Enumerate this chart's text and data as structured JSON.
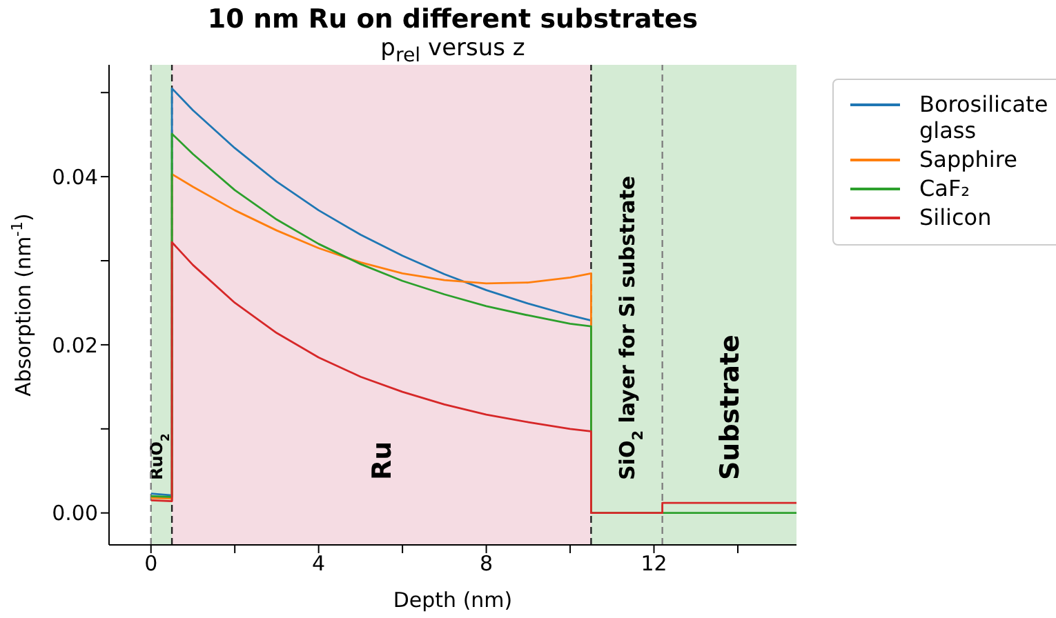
{
  "chart_data": {
    "type": "line",
    "title": "10 nm Ru on different substrates",
    "subtitle": "p$_{rel}$ versus z",
    "xlabel": "Depth (nm)",
    "ylabel": "Absorption (nm$^{-1}$)",
    "x": [
      0,
      0.5,
      0.5,
      1,
      2,
      3,
      4,
      5,
      6,
      7,
      8,
      9,
      10,
      10.5,
      10.5,
      12.2,
      12.2,
      15.4
    ],
    "series": [
      {
        "name": "Borosilicate glass",
        "color": "#1f77b4",
        "values": [
          0.0023,
          0.0021,
          0.0505,
          0.0479,
          0.0434,
          0.0394,
          0.036,
          0.0331,
          0.0306,
          0.0284,
          0.0265,
          0.0249,
          0.0235,
          0.0229,
          0,
          null,
          null,
          null
        ]
      },
      {
        "name": "Sapphire",
        "color": "#ff7f0e",
        "values": [
          0.0018,
          0.0017,
          0.0403,
          0.0388,
          0.036,
          0.0336,
          0.0315,
          0.0298,
          0.0285,
          0.0277,
          0.0273,
          0.0274,
          0.028,
          0.0285,
          0,
          null,
          null,
          null
        ]
      },
      {
        "name": "CaF₂",
        "color": "#2ca02c",
        "values": [
          0.002,
          0.0019,
          0.0451,
          0.0427,
          0.0384,
          0.0349,
          0.032,
          0.0296,
          0.0276,
          0.026,
          0.0246,
          0.0235,
          0.0225,
          0.0222,
          0,
          0,
          0,
          0
        ]
      },
      {
        "name": "Silicon",
        "color": "#d62728",
        "values": [
          0.0015,
          0.0014,
          0.0322,
          0.0295,
          0.025,
          0.0214,
          0.0185,
          0.0162,
          0.0144,
          0.0129,
          0.0117,
          0.0108,
          0.01,
          0.0097,
          0,
          0,
          0.0012,
          0.0012
        ]
      }
    ],
    "xlim": [
      -1,
      15.4
    ],
    "ylim": [
      -0.0038,
      0.0533
    ],
    "xticks": [
      0,
      {
        "value": 2,
        "label": null
      },
      4,
      {
        "value": 6,
        "label": null
      },
      8,
      {
        "value": 10,
        "label": null
      },
      12,
      {
        "value": 14,
        "label": null
      }
    ],
    "yticks": [
      {
        "value": 0,
        "label": "0.00"
      },
      {
        "value": 0.01,
        "label": null
      },
      {
        "value": 0.02,
        "label": "0.02"
      },
      {
        "value": 0.03,
        "label": null
      },
      {
        "value": 0.04,
        "label": "0.04"
      },
      {
        "value": 0.05,
        "label": null
      }
    ],
    "bands": [
      {
        "axis": "x",
        "from": 0,
        "to": 0.5,
        "label": "RuO$_{2}$",
        "color": "#d4ebd4"
      },
      {
        "axis": "x",
        "from": 0.5,
        "to": 10.5,
        "label": "Ru",
        "color": "#f5dce3"
      },
      {
        "axis": "x",
        "from": 10.5,
        "to": 12.2,
        "label": "SiO$_{2}$ layer for Si substrate",
        "color": "#d4ebd4"
      },
      {
        "axis": "x",
        "from": 12.2,
        "to": 15.4,
        "label": "Substrate",
        "color": "#d4ebd4"
      }
    ],
    "ref_lines": [
      {
        "axis": "x",
        "value": 0,
        "color": "#808080",
        "line_style": "dashed"
      },
      {
        "axis": "x",
        "value": 0.5,
        "color": "#222222",
        "line_style": "dashed"
      },
      {
        "axis": "x",
        "value": 10.5,
        "color": "#222222",
        "line_style": "dashed"
      },
      {
        "axis": "x",
        "value": 12.2,
        "color": "#808080",
        "line_style": "dashed"
      }
    ],
    "legend": "right"
  }
}
